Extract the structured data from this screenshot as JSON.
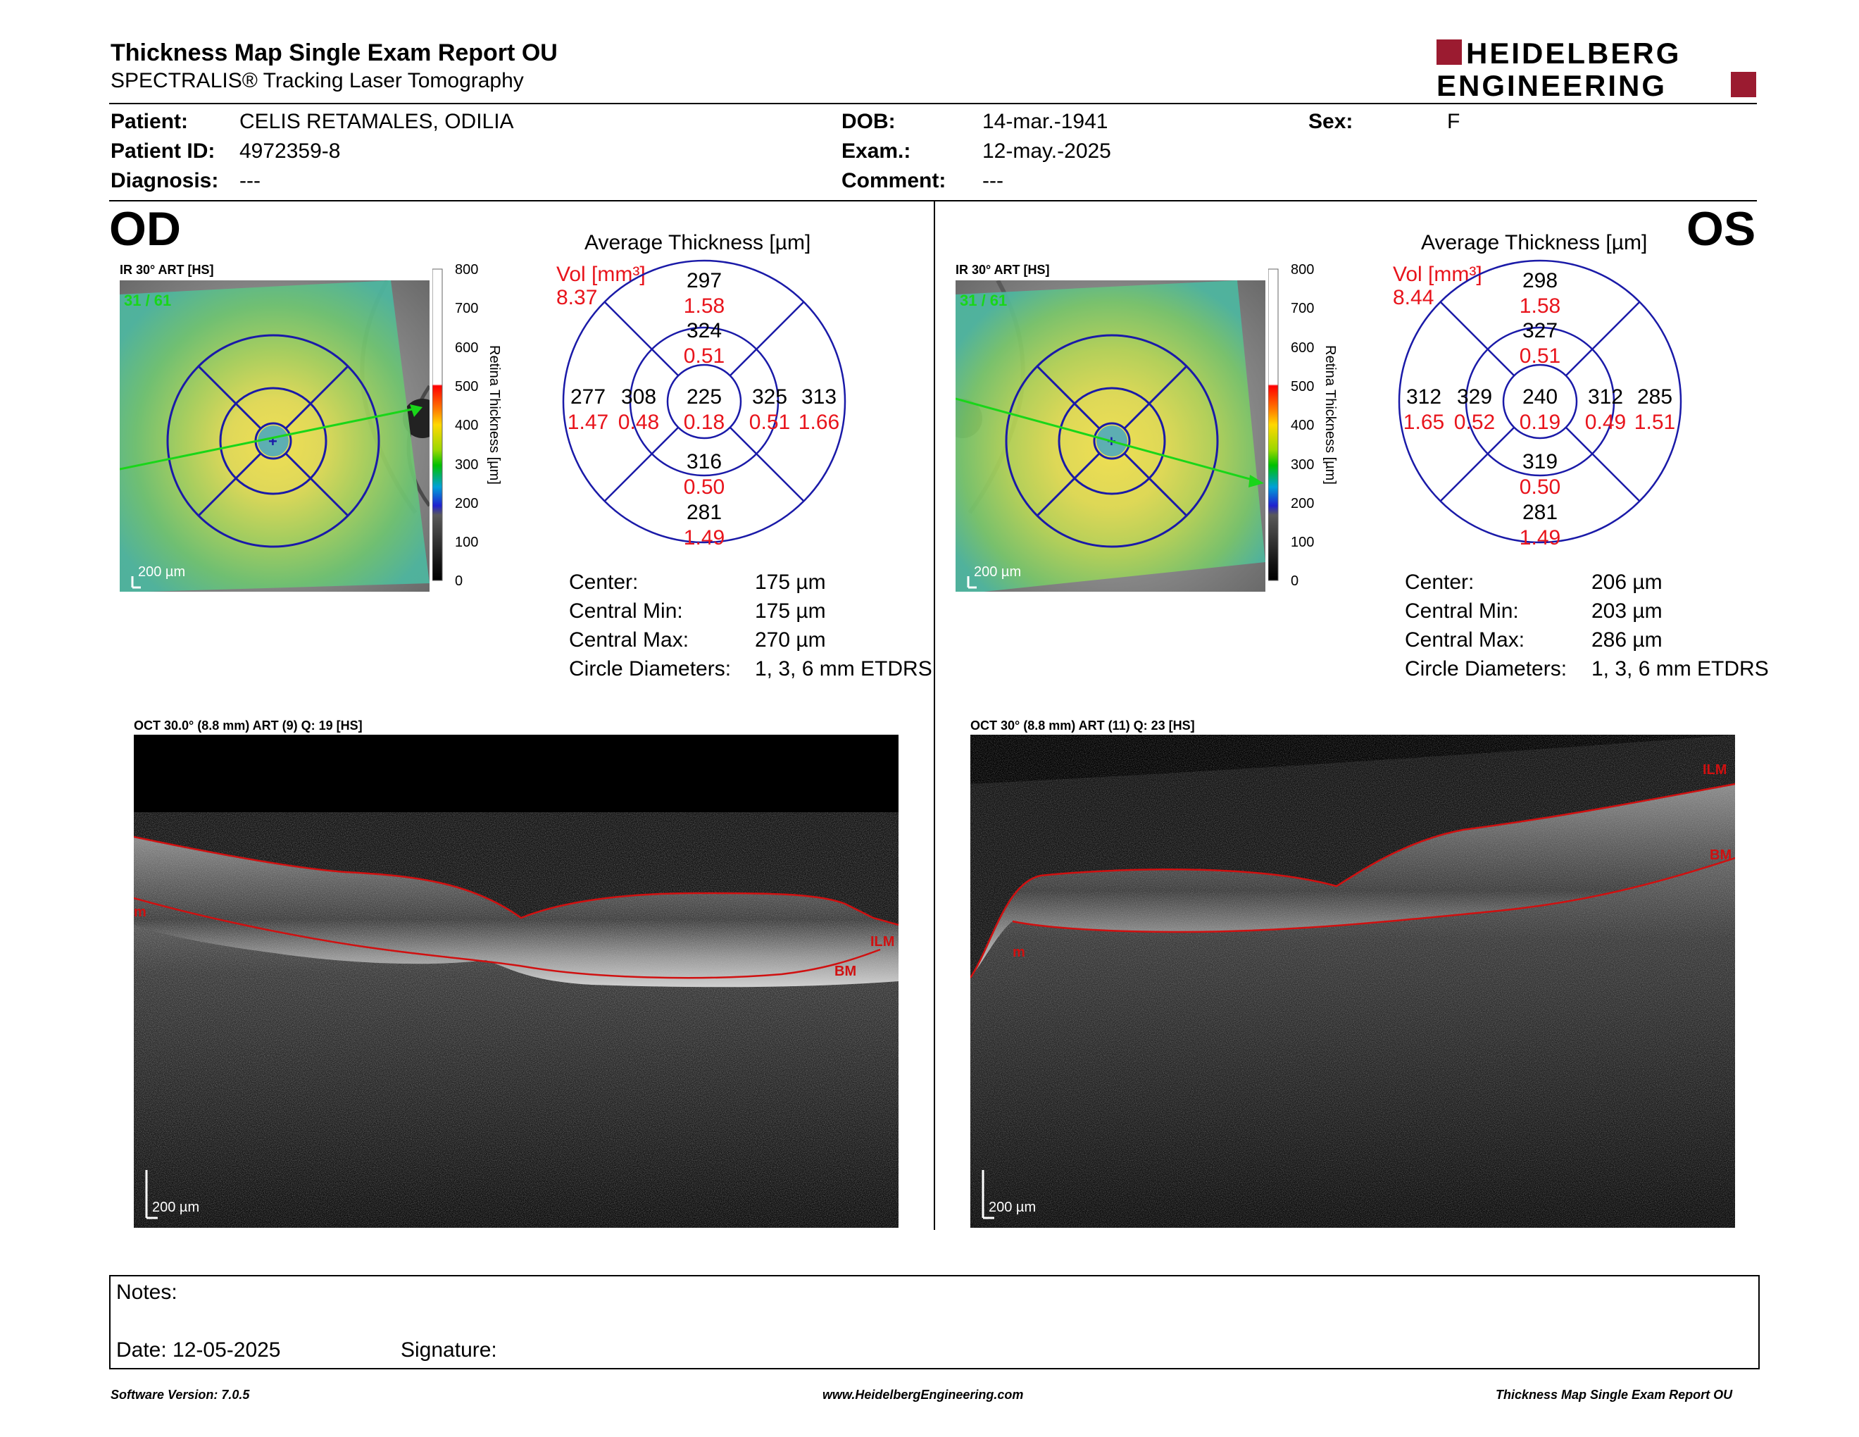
{
  "header": {
    "title": "Thickness Map Single Exam Report OU",
    "subtitle": "SPECTRALIS® Tracking Laser Tomography",
    "logo_line1": "HEIDELBERG",
    "logo_line2": "ENGINEERING",
    "logo_color": "#9b1b30"
  },
  "patient": {
    "patient_label": "Patient:",
    "patient_value": "CELIS RETAMALES, ODILIA",
    "id_label": "Patient ID:",
    "id_value": "4972359-8",
    "diagnosis_label": "Diagnosis:",
    "diagnosis_value": "---",
    "dob_label": "DOB:",
    "dob_value": "14-mar.-1941",
    "exam_label": "Exam.:",
    "exam_value": "12-may.-2025",
    "comment_label": "Comment:",
    "comment_value": "---",
    "sex_label": "Sex:",
    "sex_value": "F"
  },
  "od": {
    "eye": "OD",
    "ir_label": "IR 30° ART [HS]",
    "ir_counter": "31 / 61",
    "scale_label": "200 µm",
    "avg_title": "Average Thickness [µm]",
    "vol_label": "Vol [mm³]",
    "vol_value": "8.37",
    "etdrs": {
      "outer_sup": "297",
      "outer_sup_vol": "1.58",
      "inner_sup": "324",
      "inner_sup_vol": "0.51",
      "outer_temp": "277",
      "outer_temp_vol": "1.47",
      "inner_temp": "308",
      "inner_temp_vol": "0.48",
      "center": "225",
      "center_vol": "0.18",
      "inner_nas": "325",
      "inner_nas_vol": "0.51",
      "outer_nas": "313",
      "outer_nas_vol": "1.66",
      "inner_inf": "316",
      "inner_inf_vol": "0.50",
      "outer_inf": "281",
      "outer_inf_vol": "1.49"
    },
    "stats": {
      "center_label": "Center:",
      "center_value": "175 µm",
      "min_label": "Central Min:",
      "min_value": "175 µm",
      "max_label": "Central Max:",
      "max_value": "270 µm",
      "diam_label": "Circle Diameters:",
      "diam_value": "1, 3, 6 mm ETDRS"
    },
    "oct_label": "OCT 30.0° (8.8 mm) ART (9) Q: 19 [HS]",
    "oct_scale": "200 µm",
    "ilm": "ILM",
    "bm": "BM",
    "m": "m"
  },
  "os": {
    "eye": "OS",
    "ir_label": "IR 30° ART [HS]",
    "ir_counter": "31 / 61",
    "scale_label": "200 µm",
    "avg_title": "Average Thickness [µm]",
    "vol_label": "Vol [mm³]",
    "vol_value": "8.44",
    "etdrs": {
      "outer_sup": "298",
      "outer_sup_vol": "1.58",
      "inner_sup": "327",
      "inner_sup_vol": "0.51",
      "outer_temp": "312",
      "outer_temp_vol": "1.65",
      "inner_temp": "329",
      "inner_temp_vol": "0.52",
      "center": "240",
      "center_vol": "0.19",
      "inner_nas": "312",
      "inner_nas_vol": "0.49",
      "outer_nas": "285",
      "outer_nas_vol": "1.51",
      "inner_inf": "319",
      "inner_inf_vol": "0.50",
      "outer_inf": "281",
      "outer_inf_vol": "1.49"
    },
    "stats": {
      "center_label": "Center:",
      "center_value": "206 µm",
      "min_label": "Central Min:",
      "min_value": "203 µm",
      "max_label": "Central Max:",
      "max_value": "286 µm",
      "diam_label": "Circle Diameters:",
      "diam_value": "1, 3, 6 mm ETDRS"
    },
    "oct_label": "OCT 30° (8.8 mm) ART (11) Q: 23 [HS]",
    "oct_scale": "200 µm",
    "ilm": "ILM",
    "bm": "BM",
    "m": "m"
  },
  "colorbar": {
    "ticks": [
      "800",
      "700",
      "600",
      "500",
      "400",
      "300",
      "200",
      "100",
      "0"
    ],
    "label": "Retina Thickness [µm]"
  },
  "notes": {
    "notes_label": "Notes:",
    "date_label": "Date: 12-05-2025",
    "signature_label": "Signature:"
  },
  "footer": {
    "software": "Software Version: 7.0.5",
    "website": "www.HeidelbergEngineering.com",
    "report": "Thickness Map Single Exam Report OU"
  },
  "colors": {
    "volume_red": "#e8141c",
    "grid_blue": "#1a1aa8",
    "ilm_red": "#d01010"
  }
}
